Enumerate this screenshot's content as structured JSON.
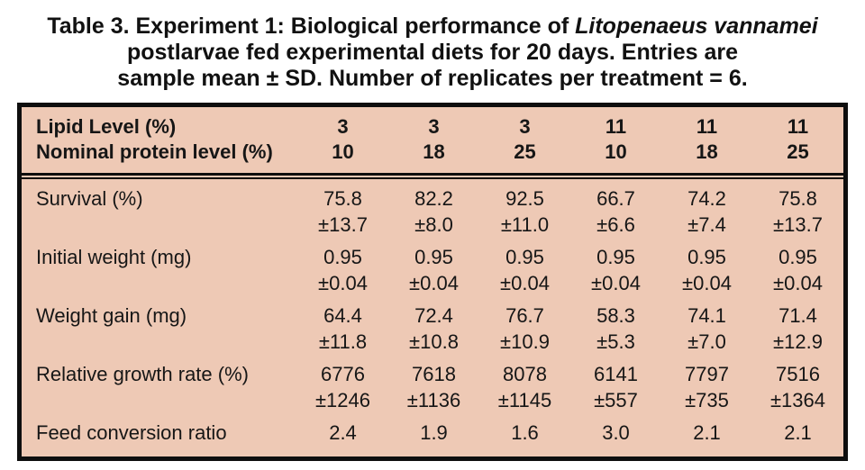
{
  "title": {
    "line1_prefix": "Table 3. Experiment 1: Biological performance of ",
    "line1_italic": "Litopenaeus vannamei",
    "line2": "postlarvae fed experimental diets for 20 days. Entries are",
    "line3": "sample mean ± SD. Number of replicates per treatment = 6."
  },
  "colors": {
    "table_background": "#eec9b5",
    "border": "#0e0e0e",
    "text": "#161616",
    "page_background": "#ffffff"
  },
  "table": {
    "header_rows": [
      {
        "label": "Lipid Level (%)",
        "values": [
          "3",
          "3",
          "3",
          "11",
          "11",
          "11"
        ]
      },
      {
        "label": "Nominal protein level (%)",
        "values": [
          "10",
          "18",
          "25",
          "10",
          "18",
          "25"
        ]
      }
    ],
    "body_rows": [
      {
        "label": "Survival (%)",
        "mean": [
          "75.8",
          "82.2",
          "92.5",
          "66.7",
          "74.2",
          "75.8"
        ],
        "sd": [
          "±13.7",
          "±8.0",
          "±11.0",
          "±6.6",
          "±7.4",
          "±13.7"
        ]
      },
      {
        "label": "Initial weight (mg)",
        "mean": [
          "0.95",
          "0.95",
          "0.95",
          "0.95",
          "0.95",
          "0.95"
        ],
        "sd": [
          "±0.04",
          "±0.04",
          "±0.04",
          "±0.04",
          "±0.04",
          "±0.04"
        ]
      },
      {
        "label": "Weight gain (mg)",
        "mean": [
          "64.4",
          "72.4",
          "76.7",
          "58.3",
          "74.1",
          "71.4"
        ],
        "sd": [
          "±11.8",
          "±10.8",
          "±10.9",
          "±5.3",
          "±7.0",
          "±12.9"
        ]
      },
      {
        "label": "Relative growth rate (%)",
        "mean": [
          "6776",
          "7618",
          "8078",
          "6141",
          "7797",
          "7516"
        ],
        "sd": [
          "±1246",
          "±1136",
          "±1145",
          "±557",
          "±735",
          "±1364"
        ]
      },
      {
        "label": "Feed conversion ratio",
        "mean": [
          "2.4",
          "1.9",
          "1.6",
          "3.0",
          "2.1",
          "2.1"
        ]
      }
    ]
  }
}
